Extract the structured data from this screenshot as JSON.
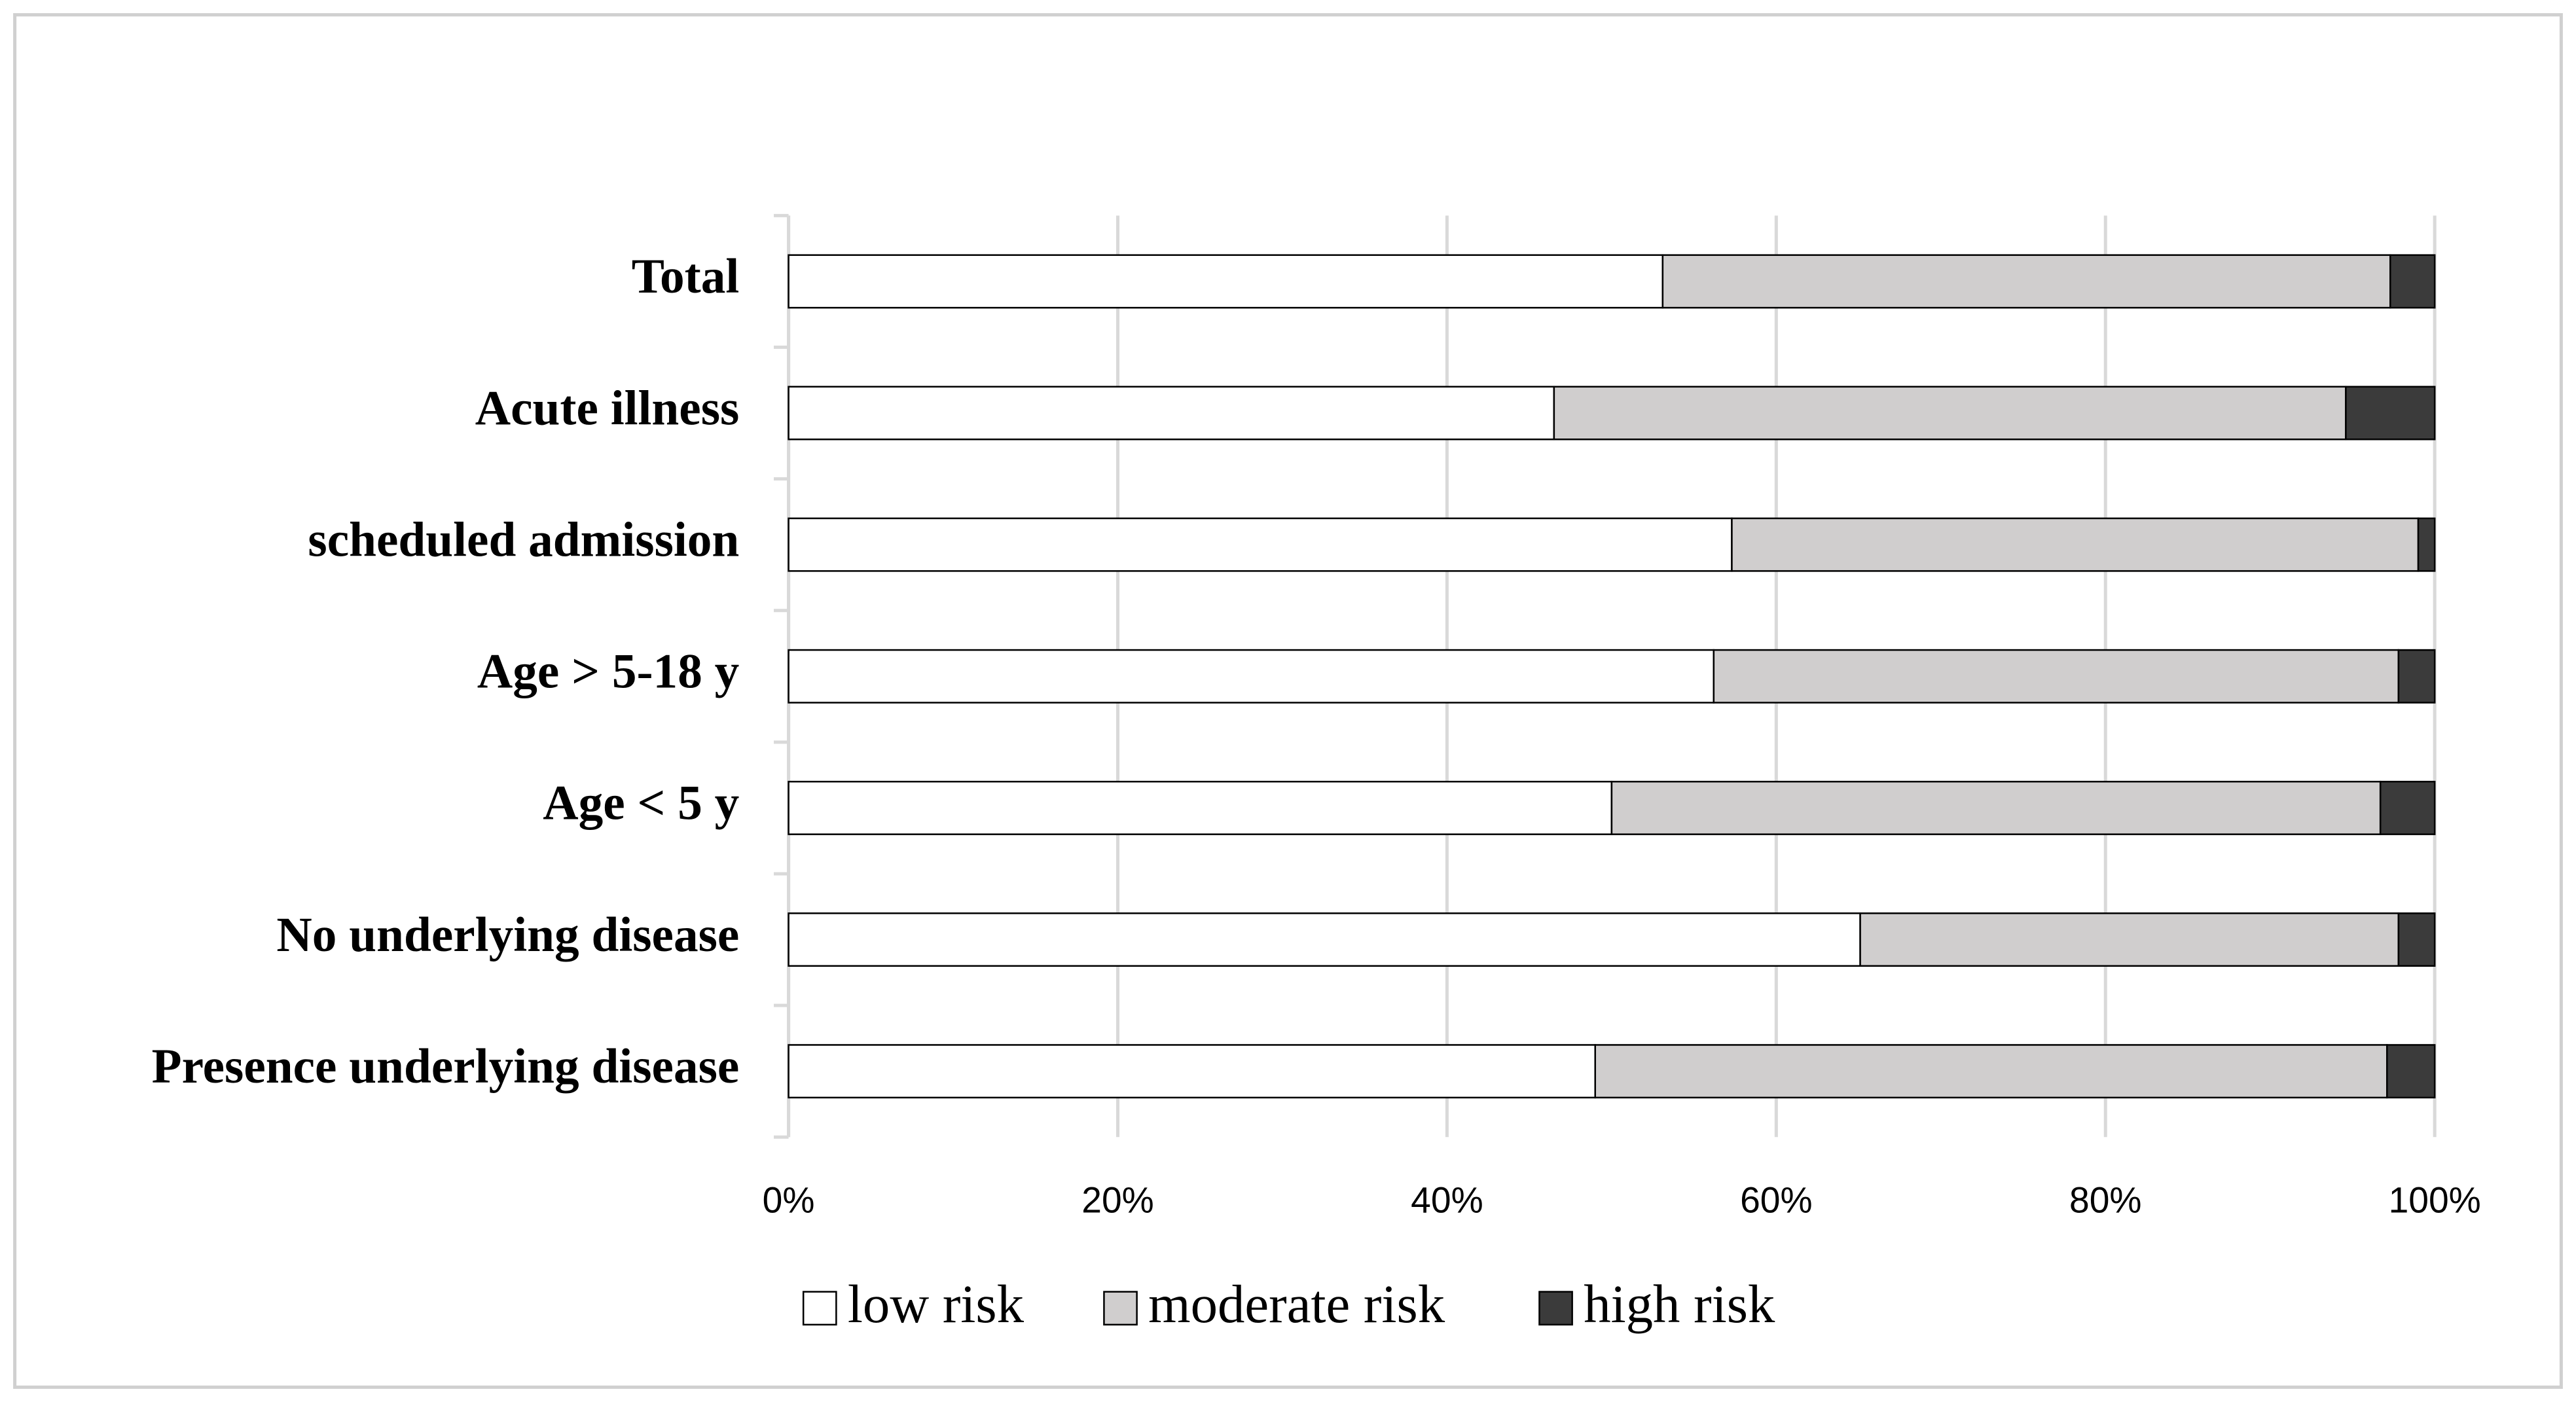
{
  "chart_data": {
    "type": "stacked-barh",
    "categories": [
      "Total",
      "Acute illness",
      "scheduled admission",
      "Age > 5-18 y",
      "Age < 5 y",
      "No underlying disease",
      "Presence underlying disease"
    ],
    "series": [
      {
        "name": "low risk",
        "color": "#ffffff",
        "values": [
          53.1,
          46.5,
          57.3,
          56.2,
          50.0,
          65.1,
          49.0
        ]
      },
      {
        "name": "moderate risk",
        "color": "#d0cece",
        "values": [
          44.2,
          48.1,
          41.7,
          41.6,
          46.7,
          32.7,
          48.1
        ]
      },
      {
        "name": "high risk",
        "color": "#3b3b3b",
        "values": [
          2.7,
          5.4,
          1.0,
          2.2,
          3.3,
          2.2,
          2.9
        ]
      }
    ],
    "xlim": [
      0,
      100
    ],
    "xticks": [
      {
        "value": 0,
        "label": "0%"
      },
      {
        "value": 20,
        "label": "20%"
      },
      {
        "value": 40,
        "label": "40%"
      },
      {
        "value": 60,
        "label": "60%"
      },
      {
        "value": 80,
        "label": "80%"
      },
      {
        "value": 100,
        "label": "100%"
      }
    ],
    "grid": true,
    "legend": "bottom"
  }
}
